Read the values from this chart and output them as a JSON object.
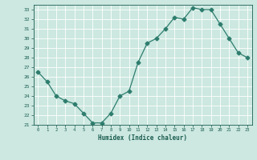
{
  "x": [
    0,
    1,
    2,
    3,
    4,
    5,
    6,
    7,
    8,
    9,
    10,
    11,
    12,
    13,
    14,
    15,
    16,
    17,
    18,
    19,
    20,
    21,
    22,
    23
  ],
  "y": [
    26.5,
    25.5,
    24.0,
    23.5,
    23.2,
    22.2,
    21.2,
    21.2,
    22.2,
    24.0,
    24.5,
    27.5,
    29.5,
    30.0,
    31.0,
    32.2,
    32.0,
    33.2,
    33.0,
    33.0,
    31.5,
    30.0,
    28.5,
    28.0
  ],
  "line_color": "#2e7d6e",
  "marker": "D",
  "markersize": 2.5,
  "bg_color": "#cce8e0",
  "grid_color": "#ffffff",
  "xlabel": "Humidex (Indice chaleur)",
  "ylim": [
    21,
    33.5
  ],
  "xlim": [
    -0.5,
    23.5
  ],
  "yticks": [
    21,
    22,
    23,
    24,
    25,
    26,
    27,
    28,
    29,
    30,
    31,
    32,
    33
  ],
  "xticks": [
    0,
    1,
    2,
    3,
    4,
    5,
    6,
    7,
    8,
    9,
    10,
    11,
    12,
    13,
    14,
    15,
    16,
    17,
    18,
    19,
    20,
    21,
    22,
    23
  ],
  "label_color": "#1a5c50",
  "tick_color": "#1a5c50",
  "spine_color": "#1a5c50"
}
